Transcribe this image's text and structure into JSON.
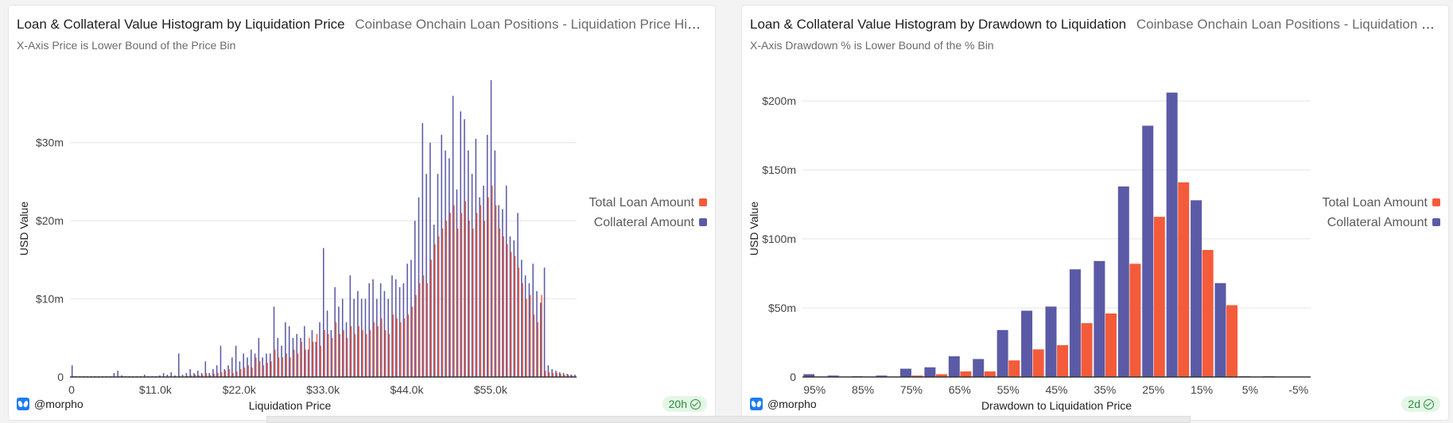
{
  "left": {
    "title": "Loan & Collateral Value Histogram by Liquidation Price",
    "subhead": "Coinbase Onchain Loan Positions - Liquidation Price Histogram",
    "caption": "X-Axis Price is Lower Bound of the Price Bin",
    "user": "@morpho",
    "freshness": "20h",
    "chart_data": {
      "type": "bar",
      "xlabel": "Liquidation Price",
      "ylabel": "USD Value",
      "ylim": [
        0,
        38
      ],
      "y_unit": "USD millions",
      "yticks": [
        {
          "v": 0,
          "label": "0"
        },
        {
          "v": 10,
          "label": "$10m"
        },
        {
          "v": 20,
          "label": "$20m"
        },
        {
          "v": 30,
          "label": "$30m"
        }
      ],
      "xticks": [
        {
          "i": 0,
          "label": "0"
        },
        {
          "i": 22,
          "label": "$11.0k"
        },
        {
          "i": 44,
          "label": "$22.0k"
        },
        {
          "i": 66,
          "label": "$33.0k"
        },
        {
          "i": 88,
          "label": "$44.0k"
        },
        {
          "i": 110,
          "label": "$55.0k"
        }
      ],
      "bin_width_usd": 500,
      "legend_position": "right",
      "grid": true,
      "series": [
        {
          "name": "Total Loan Amount",
          "color": "#f45b3a",
          "values": [
            0.1,
            0.05,
            0.05,
            0.05,
            0.05,
            0.05,
            0.05,
            0.05,
            0.05,
            0.05,
            0.05,
            0.05,
            0.1,
            0.1,
            0.05,
            0.05,
            0.05,
            0.05,
            0.05,
            0.05,
            0.05,
            0.05,
            0.05,
            0.05,
            0.05,
            0.05,
            0.05,
            0.05,
            0.1,
            0.05,
            0.1,
            0.2,
            0.3,
            0.2,
            0.3,
            0.5,
            0.2,
            0.4,
            0.5,
            0.6,
            0.8,
            1.0,
            0.5,
            0.7,
            1.0,
            1.2,
            1.5,
            1.2,
            2.5,
            2.0,
            1.5,
            1.8,
            2.0,
            3.5,
            2.5,
            2.5,
            3.0,
            2.5,
            3.5,
            3.0,
            4.5,
            3.5,
            5.0,
            4.5,
            5.5,
            4.0,
            6.0,
            5.5,
            5.0,
            7.0,
            5.5,
            6.0,
            5.0,
            6.5,
            5.5,
            6.5,
            6.0,
            5.5,
            6.0,
            7.0,
            6.5,
            7.5,
            6.0,
            5.5,
            8.0,
            7.5,
            7.0,
            7.5,
            8.0,
            9.0,
            10.5,
            12.0,
            13.0,
            12.0,
            15.0,
            17.0,
            18.0,
            19.0,
            20.0,
            21.0,
            22.0,
            19.0,
            21.0,
            22.5,
            20.0,
            19.0,
            21.0,
            22.0,
            20.0,
            23.0,
            24.5,
            22.0,
            19.0,
            18.0,
            17.0,
            16.0,
            15.5,
            14.0,
            12.0,
            10.0,
            10.5,
            8.0,
            7.0,
            10.5,
            0.8,
            0.6,
            0.5,
            0.5,
            0.4,
            0.3,
            0.3,
            0.2
          ]
        },
        {
          "name": "Collateral Amount",
          "color": "#5b5aa6",
          "values": [
            1.5,
            0.1,
            0.1,
            0.1,
            0.1,
            0.1,
            0.1,
            0.1,
            0.1,
            0.1,
            0.1,
            0.5,
            0.8,
            0.2,
            0.1,
            0.1,
            0.1,
            0.1,
            0.1,
            0.3,
            0.1,
            0.1,
            0.1,
            0.2,
            0.5,
            0.3,
            0.6,
            0.2,
            3.0,
            0.3,
            0.5,
            1.0,
            0.5,
            0.8,
            0.5,
            2.0,
            0.5,
            1.0,
            1.5,
            4.0,
            1.0,
            1.5,
            2.5,
            4.0,
            2.0,
            3.0,
            2.5,
            3.5,
            3.0,
            5.0,
            2.5,
            3.0,
            3.0,
            9.0,
            5.0,
            4.0,
            7.0,
            6.5,
            5.0,
            5.5,
            5.0,
            6.5,
            3.5,
            6.0,
            4.5,
            7.0,
            16.5,
            8.5,
            6.0,
            11.5,
            9.0,
            10.0,
            7.0,
            13.0,
            10.0,
            11.0,
            10.0,
            10.0,
            12.0,
            12.5,
            10.0,
            12.0,
            11.0,
            10.0,
            13.0,
            12.5,
            11.5,
            12.0,
            14.5,
            15.0,
            20.0,
            23.0,
            32.5,
            26.0,
            30.0,
            19.5,
            26.0,
            31.0,
            29.0,
            28.0,
            36.0,
            24.0,
            34.0,
            33.0,
            29.0,
            26.0,
            30.5,
            23.0,
            24.5,
            31.0,
            38.0,
            29.0,
            22.0,
            21.5,
            24.5,
            18.0,
            17.5,
            21.0,
            15.0,
            13.0,
            12.0,
            14.5,
            11.0,
            9.5,
            14.0,
            1.5,
            1.0,
            0.8,
            0.6,
            0.5,
            0.4,
            0.3,
            0.3
          ]
        }
      ]
    }
  },
  "right": {
    "title": "Loan & Collateral Value Histogram by Drawdown to Liquidation",
    "subhead": "Coinbase Onchain Loan Positions - Liquidation Drawdown Histogram",
    "caption": "X-Axis Drawdown % is Lower Bound of the % Bin",
    "user": "@morpho",
    "freshness": "2d",
    "chart_data": {
      "type": "bar",
      "xlabel": "Drawdown to Liquidation Price",
      "ylabel": "USD Value",
      "ylim": [
        0,
        215
      ],
      "y_unit": "USD millions",
      "yticks": [
        {
          "v": 0,
          "label": "0"
        },
        {
          "v": 50,
          "label": "$50m"
        },
        {
          "v": 100,
          "label": "$100m"
        },
        {
          "v": 150,
          "label": "$150m"
        },
        {
          "v": 200,
          "label": "$200m"
        }
      ],
      "categories": [
        "95%",
        "90%",
        "85%",
        "80%",
        "75%",
        "70%",
        "65%",
        "60%",
        "55%",
        "50%",
        "45%",
        "40%",
        "35%",
        "30%",
        "25%",
        "20%",
        "15%",
        "10%",
        "5%",
        "0%",
        "-5%"
      ],
      "xtick_labels": [
        "95%",
        "85%",
        "75%",
        "65%",
        "55%",
        "45%",
        "35%",
        "25%",
        "15%",
        "5%",
        "-5%"
      ],
      "legend_position": "right",
      "grid": true,
      "series": [
        {
          "name": "Collateral Amount",
          "color": "#5b5aa6",
          "values": [
            2,
            1,
            0.5,
            1,
            6,
            7,
            15,
            13,
            34,
            48,
            51,
            78,
            84,
            138,
            182,
            206,
            128,
            68,
            0.5,
            0.5,
            0.3
          ]
        },
        {
          "name": "Total Loan Amount",
          "color": "#f45b3a",
          "values": [
            0.3,
            0.3,
            0.3,
            0.3,
            1,
            2,
            4,
            4,
            12,
            20,
            23,
            39,
            46,
            82,
            116,
            141,
            92,
            52,
            0.3,
            0.3,
            0.2
          ]
        }
      ]
    }
  }
}
